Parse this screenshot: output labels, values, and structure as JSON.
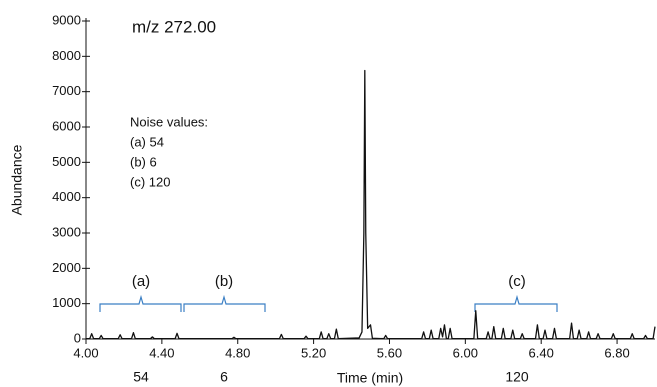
{
  "chart_data": {
    "type": "line",
    "title": "m/z 272.00",
    "x_label": "Time (min)",
    "y_label": "Abundance",
    "xlim": [
      4.0,
      7.0
    ],
    "ylim": [
      0,
      9000
    ],
    "xticks": [
      {
        "value": 4.0,
        "label": "4.00"
      },
      {
        "value": 4.4,
        "label": "4.40"
      },
      {
        "value": 4.8,
        "label": "4.80"
      },
      {
        "value": 5.2,
        "label": "5.20"
      },
      {
        "value": 5.6,
        "label": "5.60"
      },
      {
        "value": 6.0,
        "label": "6.00"
      },
      {
        "value": 6.4,
        "label": "6.40"
      },
      {
        "value": 6.8,
        "label": "6.80"
      }
    ],
    "yticks": [
      0,
      1000,
      2000,
      3000,
      4000,
      5000,
      6000,
      7000,
      8000,
      9000
    ],
    "color": "#111111",
    "noise_title": "Noise values:",
    "noise_lines": [
      "(a) 54",
      "(b) 6",
      "(c) 120"
    ],
    "region_labels": [
      "(a)",
      "(b)",
      "(c)"
    ],
    "region_noise": [
      54,
      6,
      120
    ],
    "x": [
      4.0,
      4.02,
      4.03,
      4.04,
      4.07,
      4.08,
      4.09,
      4.17,
      4.18,
      4.19,
      4.24,
      4.25,
      4.26,
      4.34,
      4.35,
      4.36,
      4.47,
      4.48,
      4.49,
      4.77,
      4.78,
      4.79,
      5.02,
      5.03,
      5.04,
      5.15,
      5.16,
      5.17,
      5.23,
      5.24,
      5.25,
      5.27,
      5.28,
      5.29,
      5.31,
      5.32,
      5.33,
      5.44,
      5.455,
      5.465,
      5.47,
      5.475,
      5.485,
      5.5,
      5.51,
      5.57,
      5.58,
      5.59,
      5.77,
      5.78,
      5.79,
      5.81,
      5.82,
      5.83,
      5.86,
      5.87,
      5.88,
      5.89,
      5.9,
      5.91,
      5.92,
      5.93,
      6.045,
      6.055,
      6.065,
      6.11,
      6.12,
      6.13,
      6.14,
      6.15,
      6.16,
      6.19,
      6.2,
      6.21,
      6.24,
      6.25,
      6.26,
      6.29,
      6.3,
      6.31,
      6.37,
      6.38,
      6.39,
      6.41,
      6.42,
      6.43,
      6.46,
      6.47,
      6.48,
      6.55,
      6.56,
      6.57,
      6.59,
      6.6,
      6.61,
      6.64,
      6.65,
      6.66,
      6.69,
      6.7,
      6.71,
      6.77,
      6.78,
      6.79,
      6.87,
      6.88,
      6.89,
      6.94,
      6.95,
      6.96,
      6.99,
      7.0
    ],
    "values": [
      10,
      10,
      150,
      10,
      10,
      100,
      10,
      10,
      120,
      10,
      10,
      180,
      10,
      10,
      60,
      10,
      10,
      160,
      10,
      10,
      50,
      10,
      10,
      130,
      10,
      10,
      80,
      10,
      10,
      200,
      10,
      10,
      150,
      10,
      10,
      280,
      10,
      30,
      200,
      3000,
      7600,
      3000,
      300,
      400,
      20,
      10,
      100,
      10,
      10,
      200,
      10,
      10,
      250,
      10,
      10,
      300,
      60,
      400,
      10,
      10,
      300,
      10,
      10,
      800,
      10,
      10,
      200,
      10,
      10,
      350,
      10,
      10,
      300,
      10,
      10,
      250,
      10,
      10,
      150,
      10,
      10,
      400,
      10,
      10,
      250,
      10,
      10,
      300,
      10,
      10,
      450,
      10,
      10,
      250,
      10,
      10,
      200,
      10,
      10,
      150,
      10,
      10,
      150,
      10,
      10,
      150,
      10,
      10,
      100,
      10,
      10,
      350
    ]
  }
}
